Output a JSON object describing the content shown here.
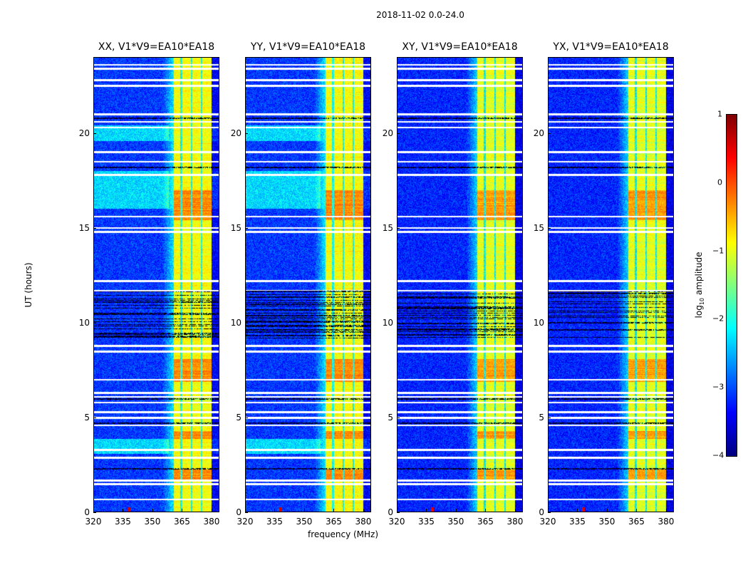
{
  "chart_data": {
    "type": "heatmap",
    "title": "2018-11-02 0.0-24.0",
    "xlabel": "frequency (MHz)",
    "ylabel": "UT (hours)",
    "xlim": [
      320,
      384
    ],
    "ylim": [
      0,
      24
    ],
    "x_ticks": [
      "320",
      "335",
      "350",
      "365",
      "380"
    ],
    "x_tick_values": [
      320,
      335,
      350,
      365,
      380
    ],
    "y_ticks": [
      "0",
      "5",
      "10",
      "15",
      "20"
    ],
    "y_tick_values": [
      0,
      5,
      10,
      15,
      20
    ],
    "panels": [
      {
        "title": "XX, V1*V9=EA10*EA18"
      },
      {
        "title": "YY, V1*V9=EA10*EA18"
      },
      {
        "title": "XY, V1*V9=EA10*EA18"
      },
      {
        "title": "YX, V1*V9=EA10*EA18"
      }
    ],
    "colorbar": {
      "label": "log10 amplitude",
      "label_main": "log",
      "label_sub": "10",
      "label_rest": " amplitude",
      "clim": [
        -4,
        1
      ],
      "ticks": [
        "1",
        "0",
        "−1",
        "−2",
        "−3",
        "−4"
      ],
      "tick_values": [
        1,
        0,
        -1,
        -2,
        -3,
        -4
      ],
      "colormap": "jet"
    },
    "bright_band_mhz": [
      360.5,
      380
    ],
    "rfi_spike_mhz": 338,
    "flagged_hours": [
      0.7,
      1.5,
      1.7,
      2.9,
      3.3,
      4.6,
      5.0,
      5.3,
      5.8,
      6.1,
      6.3,
      7.0,
      8.5,
      8.8,
      11.7,
      12.2,
      14.8,
      15.0,
      15.6,
      17.8,
      18.5,
      19.0,
      20.3,
      20.6,
      21.0,
      22.5,
      22.8,
      23.4,
      23.6
    ]
  }
}
